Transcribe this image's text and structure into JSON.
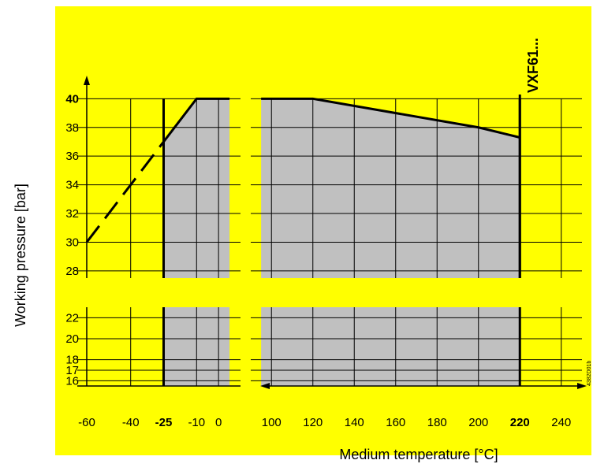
{
  "chart_data": {
    "type": "area",
    "title": "",
    "xlabel": "Medium temperature [°C]",
    "ylabel": "Working pressure [bar]",
    "model_label": "VXF61...",
    "doc_id": "4382D01b",
    "colors": {
      "background": "#ffff00",
      "fill": "#c0c0c0",
      "grid": "#000000",
      "line": "#000000"
    },
    "x_axis": {
      "left_range": [
        -60,
        10
      ],
      "right_range": [
        90,
        250
      ],
      "ticks_left": [
        {
          "value": -60,
          "label": "-60",
          "bold": false
        },
        {
          "value": -40,
          "label": "-40",
          "bold": false
        },
        {
          "value": -25,
          "label": "-25",
          "bold": true
        },
        {
          "value": -10,
          "label": "-10",
          "bold": false
        },
        {
          "value": 0,
          "label": "0",
          "bold": false
        }
      ],
      "ticks_right": [
        {
          "value": 100,
          "label": "100",
          "bold": false
        },
        {
          "value": 120,
          "label": "120",
          "bold": false
        },
        {
          "value": 140,
          "label": "140",
          "bold": false
        },
        {
          "value": 160,
          "label": "160",
          "bold": false
        },
        {
          "value": 180,
          "label": "180",
          "bold": false
        },
        {
          "value": 200,
          "label": "200",
          "bold": false
        },
        {
          "value": 220,
          "label": "220",
          "bold": true
        },
        {
          "value": 240,
          "label": "240",
          "bold": false
        }
      ]
    },
    "y_axis": {
      "upper_range": [
        27.5,
        41.5
      ],
      "lower_range": [
        15.5,
        23
      ],
      "ticks_upper": [
        {
          "value": 28,
          "label": "28",
          "bold": false
        },
        {
          "value": 30,
          "label": "30",
          "bold": false
        },
        {
          "value": 32,
          "label": "32",
          "bold": false
        },
        {
          "value": 34,
          "label": "34",
          "bold": false
        },
        {
          "value": 36,
          "label": "36",
          "bold": false
        },
        {
          "value": 38,
          "label": "38",
          "bold": false
        },
        {
          "value": 40,
          "label": "40",
          "bold": true
        }
      ],
      "ticks_lower": [
        {
          "value": 16,
          "label": "16",
          "bold": false
        },
        {
          "value": 17,
          "label": "17",
          "bold": false
        },
        {
          "value": 18,
          "label": "18",
          "bold": false
        },
        {
          "value": 20,
          "label": "20",
          "bold": false
        },
        {
          "value": 22,
          "label": "22",
          "bold": false
        }
      ]
    },
    "limits": {
      "min_temperature": -25,
      "max_temperature": 220
    },
    "series": [
      {
        "style": "solid",
        "points_left": [
          [
            -25,
            37
          ],
          [
            -10,
            40
          ],
          [
            5,
            40
          ]
        ],
        "points_right": [
          [
            95,
            40
          ],
          [
            120,
            40
          ],
          [
            200,
            38
          ],
          [
            220,
            37.3
          ]
        ]
      },
      {
        "style": "dashed",
        "points_left": [
          [
            -60,
            30
          ],
          [
            -25,
            37
          ]
        ]
      }
    ]
  }
}
